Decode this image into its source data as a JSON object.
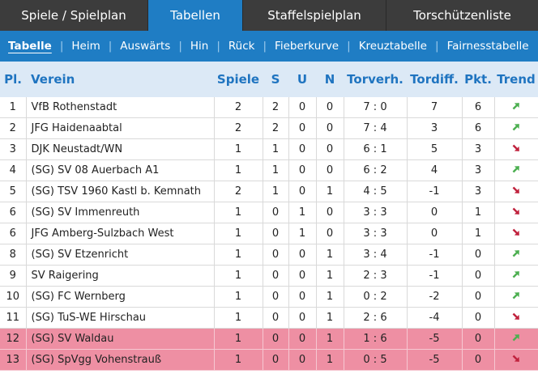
{
  "tabs": [
    {
      "label": "Spiele / Spielplan",
      "active": false
    },
    {
      "label": "Tabellen",
      "active": true
    },
    {
      "label": "Staffelspielplan",
      "active": false
    },
    {
      "label": "Torschützenliste",
      "active": false
    }
  ],
  "subnav": [
    "Tabelle",
    "Heim",
    "Auswärts",
    "Hin",
    "Rück",
    "Fieberkurve",
    "Kreuztabelle",
    "Fairnesstabelle"
  ],
  "headers": {
    "pl": "Pl.",
    "verein": "Verein",
    "spiele": "Spiele",
    "s": "S",
    "u": "U",
    "n": "N",
    "torverh": "Torverh.",
    "tordiff": "Tordiff.",
    "pkt": "Pkt.",
    "trend": "Trend"
  },
  "colors": {
    "up": "#4caf50",
    "down": "#c0223d",
    "relegation": "#ee8fa3",
    "accent": "#1f7dc4"
  },
  "rows": [
    {
      "pl": "1",
      "verein": "VfB Rothenstadt",
      "spiele": "2",
      "s": "2",
      "u": "0",
      "n": "0",
      "tv": "7 : 0",
      "td": "7",
      "pkt": "6",
      "trend": "up"
    },
    {
      "pl": "2",
      "verein": "JFG Haidenaabtal",
      "spiele": "2",
      "s": "2",
      "u": "0",
      "n": "0",
      "tv": "7 : 4",
      "td": "3",
      "pkt": "6",
      "trend": "up"
    },
    {
      "pl": "3",
      "verein": "DJK Neustadt/WN",
      "spiele": "1",
      "s": "1",
      "u": "0",
      "n": "0",
      "tv": "6 : 1",
      "td": "5",
      "pkt": "3",
      "trend": "down"
    },
    {
      "pl": "4",
      "verein": "(SG) SV 08 Auerbach A1",
      "spiele": "1",
      "s": "1",
      "u": "0",
      "n": "0",
      "tv": "6 : 2",
      "td": "4",
      "pkt": "3",
      "trend": "up"
    },
    {
      "pl": "5",
      "verein": "(SG) TSV 1960 Kastl b. Kemnath",
      "spiele": "2",
      "s": "1",
      "u": "0",
      "n": "1",
      "tv": "4 : 5",
      "td": "-1",
      "pkt": "3",
      "trend": "down"
    },
    {
      "pl": "6",
      "verein": "(SG) SV Immenreuth",
      "spiele": "1",
      "s": "0",
      "u": "1",
      "n": "0",
      "tv": "3 : 3",
      "td": "0",
      "pkt": "1",
      "trend": "down"
    },
    {
      "pl": "6",
      "verein": "JFG Amberg-Sulzbach West",
      "spiele": "1",
      "s": "0",
      "u": "1",
      "n": "0",
      "tv": "3 : 3",
      "td": "0",
      "pkt": "1",
      "trend": "down"
    },
    {
      "pl": "8",
      "verein": "(SG) SV Etzenricht",
      "spiele": "1",
      "s": "0",
      "u": "0",
      "n": "1",
      "tv": "3 : 4",
      "td": "-1",
      "pkt": "0",
      "trend": "up"
    },
    {
      "pl": "9",
      "verein": "SV Raigering",
      "spiele": "1",
      "s": "0",
      "u": "0",
      "n": "1",
      "tv": "2 : 3",
      "td": "-1",
      "pkt": "0",
      "trend": "up"
    },
    {
      "pl": "10",
      "verein": "(SG) FC Wernberg",
      "spiele": "1",
      "s": "0",
      "u": "0",
      "n": "1",
      "tv": "0 : 2",
      "td": "-2",
      "pkt": "0",
      "trend": "up"
    },
    {
      "pl": "11",
      "verein": "(SG) TuS-WE Hirschau",
      "spiele": "1",
      "s": "0",
      "u": "0",
      "n": "1",
      "tv": "2 : 6",
      "td": "-4",
      "pkt": "0",
      "trend": "down"
    },
    {
      "pl": "12",
      "verein": "(SG) SV Waldau",
      "spiele": "1",
      "s": "0",
      "u": "0",
      "n": "1",
      "tv": "1 : 6",
      "td": "-5",
      "pkt": "0",
      "trend": "up",
      "relegation": true
    },
    {
      "pl": "13",
      "verein": "(SG) SpVgg Vohenstrauß",
      "spiele": "1",
      "s": "0",
      "u": "0",
      "n": "1",
      "tv": "0 : 5",
      "td": "-5",
      "pkt": "0",
      "trend": "down",
      "relegation": true
    }
  ]
}
